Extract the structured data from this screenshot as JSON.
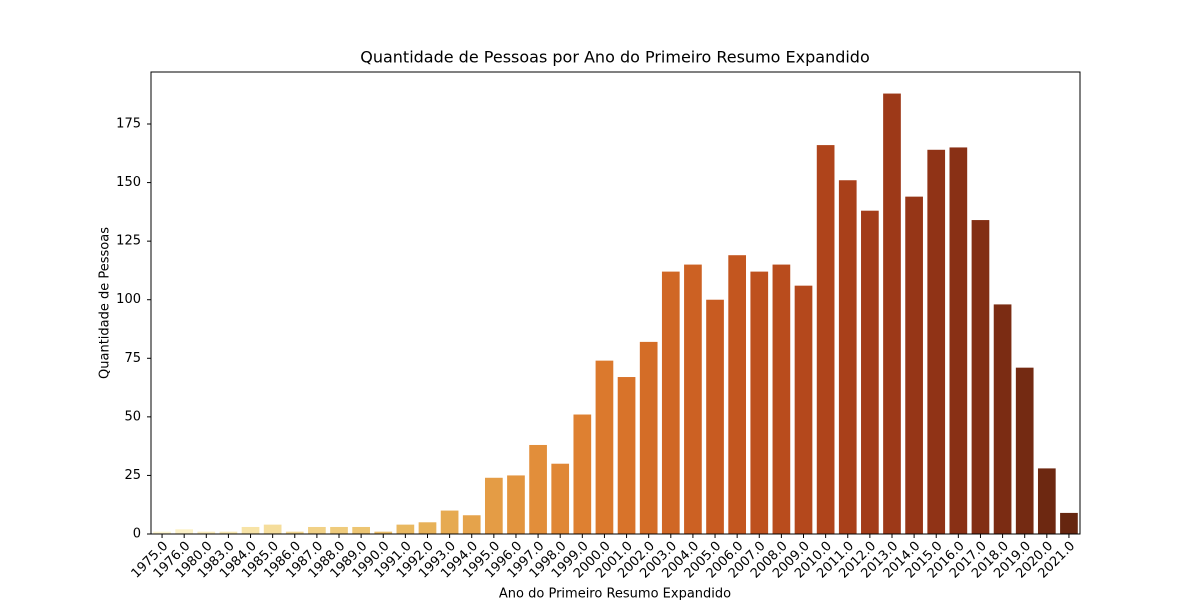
{
  "chart_data": {
    "type": "bar",
    "title": "Quantidade de Pessoas por Ano do Primeiro Resumo Expandido",
    "x_label": "Ano do Primeiro Resumo Expandido",
    "y_label": "Quantidade de Pessoas",
    "categories": [
      "1975.0",
      "1976.0",
      "1980.0",
      "1983.0",
      "1984.0",
      "1985.0",
      "1986.0",
      "1987.0",
      "1988.0",
      "1989.0",
      "1990.0",
      "1991.0",
      "1992.0",
      "1993.0",
      "1994.0",
      "1995.0",
      "1996.0",
      "1997.0",
      "1998.0",
      "1999.0",
      "2000.0",
      "2001.0",
      "2002.0",
      "2003.0",
      "2004.0",
      "2005.0",
      "2006.0",
      "2007.0",
      "2008.0",
      "2009.0",
      "2010.0",
      "2011.0",
      "2012.0",
      "2013.0",
      "2014.0",
      "2015.0",
      "2016.0",
      "2017.0",
      "2018.0",
      "2019.0",
      "2020.0",
      "2021.0"
    ],
    "values": [
      1,
      2,
      1,
      1,
      3,
      4,
      1,
      3,
      3,
      3,
      1,
      4,
      5,
      10,
      8,
      24,
      25,
      38,
      30,
      51,
      74,
      67,
      82,
      112,
      115,
      100,
      119,
      112,
      115,
      106,
      166,
      151,
      138,
      188,
      144,
      164,
      165,
      134,
      98,
      71,
      28,
      9
    ],
    "colors": [
      "#fdf5d0",
      "#fcf1c6",
      "#fbedbc",
      "#f9e8b1",
      "#f7e3a6",
      "#f5dd9b",
      "#f3d790",
      "#f1d186",
      "#efcb7c",
      "#edc572",
      "#ebbe69",
      "#e9b860",
      "#e7b158",
      "#e6aa51",
      "#e5a34b",
      "#e49c45",
      "#e3953f",
      "#e28e3a",
      "#e08735",
      "#de8031",
      "#db792d",
      "#d8732a",
      "#d46d27",
      "#d06725",
      "#cc6123",
      "#c85b21",
      "#c3561f",
      "#be511e",
      "#b94c1d",
      "#b4481c",
      "#af441b",
      "#a9401a",
      "#a33c19",
      "#9d3918",
      "#963617",
      "#903316",
      "#893015",
      "#822e14",
      "#7b2c13",
      "#742a12",
      "#6d2811",
      "#662610"
    ],
    "ylim": [
      0,
      197.2
    ],
    "yticks": [
      0,
      25,
      50,
      75,
      100,
      125,
      150,
      175
    ],
    "grid": false
  }
}
